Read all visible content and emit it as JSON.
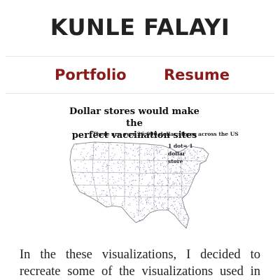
{
  "site": {
    "title": "KUNLE FALAYI"
  },
  "nav": {
    "portfolio": "Portfolio",
    "resume": "Resume"
  },
  "figure": {
    "title_line1": "Dollar stores would make the",
    "title_line2": "perfect vaccination sites",
    "subtitle": "There are over 26,000 dollar stores across the US",
    "legend_line1": "1 dot= 1 dollar",
    "legend_line2": "store",
    "dot_color": "#6a5aa6"
  },
  "article": {
    "line1": "In the these visualizations, I decided to",
    "line2": "recreate some of the visualizations used in"
  }
}
